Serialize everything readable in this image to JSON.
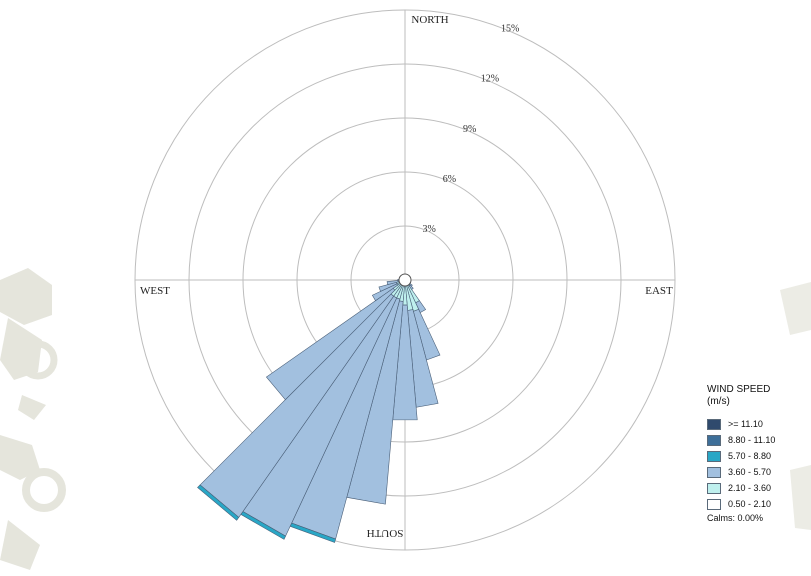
{
  "chart_data": {
    "type": "wind-rose",
    "directions": {
      "north": "NORTH",
      "east": "EAST",
      "south": "SOUTH",
      "west": "WEST"
    },
    "rings": [
      3,
      6,
      9,
      12,
      15
    ],
    "ring_labels": [
      "3%",
      "6%",
      "9%",
      "12%",
      "15%"
    ],
    "sector_count": 36,
    "sector_width_deg": 10,
    "speed_bins": [
      {
        "label": ">= 11.10",
        "color": "#2f4a6d"
      },
      {
        "label": "8.80 - 11.10",
        "color": "#3e6f99"
      },
      {
        "label": "5.70 - 8.80",
        "color": "#29a7c6"
      },
      {
        "label": "3.60 - 5.70",
        "color": "#a2c0df"
      },
      {
        "label": "2.10 - 3.60",
        "color": "#bff0ee"
      },
      {
        "label": "0.50 - 2.10",
        "color": "#ffffff"
      }
    ],
    "sectors": [
      {
        "direction_deg": 100,
        "values": [
          0.0,
          0.0,
          0.0,
          0.05,
          0.1,
          0.05
        ]
      },
      {
        "direction_deg": 110,
        "values": [
          0.0,
          0.0,
          0.0,
          0.1,
          0.15,
          0.05
        ]
      },
      {
        "direction_deg": 120,
        "values": [
          0.0,
          0.0,
          0.0,
          0.1,
          0.2,
          0.05
        ]
      },
      {
        "direction_deg": 130,
        "values": [
          0.0,
          0.0,
          0.0,
          0.15,
          0.25,
          0.1
        ]
      },
      {
        "direction_deg": 140,
        "values": [
          0.0,
          0.0,
          0.0,
          0.25,
          0.3,
          0.1
        ]
      },
      {
        "direction_deg": 150,
        "values": [
          0.0,
          0.0,
          0.0,
          0.6,
          1.2,
          0.2
        ]
      },
      {
        "direction_deg": 160,
        "values": [
          0.0,
          0.0,
          0.0,
          2.8,
          1.5,
          0.3
        ]
      },
      {
        "direction_deg": 170,
        "values": [
          0.0,
          0.0,
          0.0,
          5.4,
          1.4,
          0.3
        ]
      },
      {
        "direction_deg": 180,
        "values": [
          0.0,
          0.0,
          0.0,
          6.4,
          1.1,
          0.3
        ]
      },
      {
        "direction_deg": 190,
        "values": [
          0.0,
          0.0,
          0.0,
          11.3,
          0.9,
          0.3
        ]
      },
      {
        "direction_deg": 200,
        "values": [
          0.0,
          0.0,
          0.2,
          13.8,
          0.8,
          0.3
        ]
      },
      {
        "direction_deg": 210,
        "values": [
          0.0,
          0.0,
          0.2,
          14.6,
          0.8,
          0.3
        ]
      },
      {
        "direction_deg": 220,
        "values": [
          0.0,
          0.0,
          0.2,
          15.0,
          0.8,
          0.3
        ]
      },
      {
        "direction_deg": 230,
        "values": [
          0.0,
          0.0,
          0.0,
          8.6,
          0.5,
          0.3
        ]
      },
      {
        "direction_deg": 240,
        "values": [
          0.0,
          0.0,
          0.0,
          1.5,
          0.3,
          0.2
        ]
      },
      {
        "direction_deg": 250,
        "values": [
          0.0,
          0.0,
          0.0,
          1.0,
          0.3,
          0.2
        ]
      },
      {
        "direction_deg": 260,
        "values": [
          0.0,
          0.0,
          0.0,
          0.6,
          0.2,
          0.2
        ]
      },
      {
        "direction_deg": 270,
        "values": [
          0.0,
          0.0,
          0.0,
          0.2,
          0.1,
          0.1
        ]
      }
    ],
    "calms": "Calms: 0.00%",
    "legend": {
      "title": "WIND SPEED",
      "unit": "(m/s)",
      "placement": "bottom-right"
    },
    "colors": {
      "grid": "#bdbdbd",
      "sector_outline": "#4a5f78"
    }
  }
}
